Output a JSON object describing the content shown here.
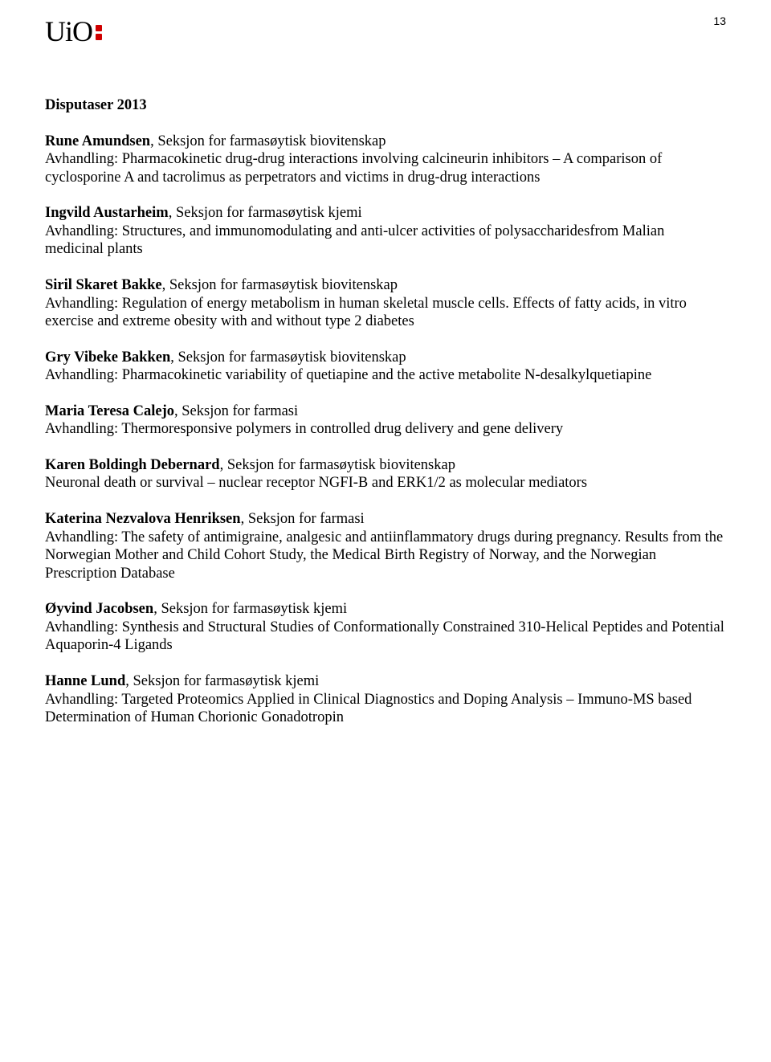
{
  "header": {
    "logo_text": "UiO",
    "page_number": "13"
  },
  "section_title": "Disputaser 2013",
  "entries": [
    {
      "name": "Rune Amundsen",
      "affiliation": ", Seksjon for farmasøytisk biovitenskap",
      "body": "Avhandling: Pharmacokinetic drug-drug interactions involving calcineurin inhibitors – A comparison of cyclosporine A and tacrolimus as perpetrators and victims in drug-drug interactions"
    },
    {
      "name": "Ingvild Austarheim",
      "affiliation": ", Seksjon for farmasøytisk kjemi",
      "body": "Avhandling: Structures, and immunomodulating and anti-ulcer activities of polysaccharidesfrom Malian medicinal plants"
    },
    {
      "name": "Siril Skaret Bakke",
      "affiliation": ", Seksjon for farmasøytisk biovitenskap",
      "body": "Avhandling: Regulation of energy metabolism in human skeletal muscle cells. Effects of fatty acids, in vitro exercise and extreme obesity with and without type 2 diabetes"
    },
    {
      "name": "Gry Vibeke Bakken",
      "affiliation": ", Seksjon for farmasøytisk biovitenskap",
      "body": "Avhandling: Pharmacokinetic variability of quetiapine and the active metabolite N-desalkylquetiapine"
    },
    {
      "name": "Maria Teresa Calejo",
      "affiliation": ", Seksjon for farmasi",
      "body": "Avhandling: Thermoresponsive polymers in controlled drug delivery and gene delivery"
    },
    {
      "name": "Karen Boldingh Debernard",
      "affiliation": ", Seksjon for farmasøytisk biovitenskap",
      "body": "Neuronal death or survival – nuclear receptor NGFI-B and ERK1/2 as molecular mediators"
    },
    {
      "name": "Katerina Nezvalova Henriksen",
      "affiliation": ", Seksjon for farmasi",
      "body": "Avhandling: The safety of antimigraine, analgesic and antiinflammatory drugs during  pregnancy. Results from the Norwegian Mother and Child Cohort Study, the Medical Birth Registry of Norway, and the Norwegian Prescription Database"
    },
    {
      "name": "Øyvind Jacobsen",
      "affiliation": ", Seksjon for farmasøytisk kjemi",
      "body": "Avhandling: Synthesis and Structural Studies of Conformationally Constrained 310-Helical Peptides and Potential Aquaporin-4 Ligands"
    },
    {
      "name": "Hanne Lund",
      "affiliation": ", Seksjon for farmasøytisk kjemi",
      "body": "Avhandling: Targeted Proteomics Applied in Clinical Diagnostics and Doping Analysis – Immuno-MS based Determination of Human Chorionic Gonadotropin"
    }
  ]
}
